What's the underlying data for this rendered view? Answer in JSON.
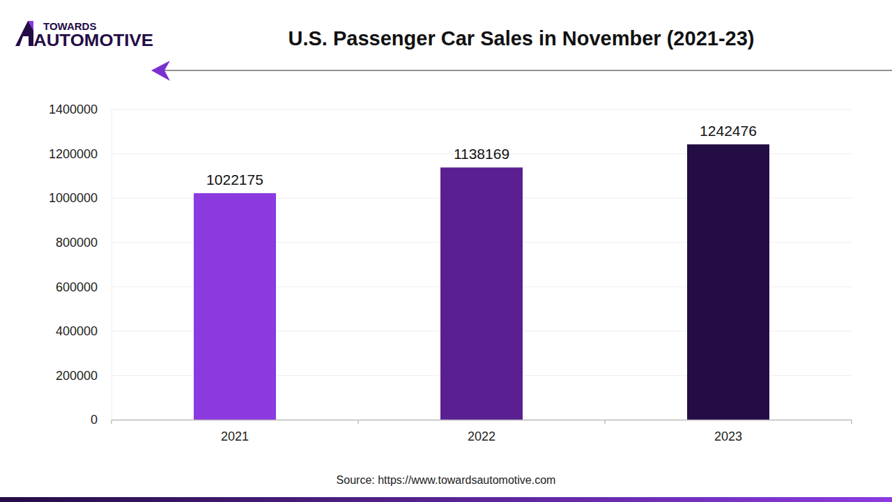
{
  "chart_data": {
    "type": "bar",
    "title": "U.S. Passenger Car Sales in November (2021-23)",
    "annotations": [
      "TOWARDS",
      "AUTOMOTIVE",
      "Source: https://www.towardsautomotive.com"
    ],
    "categories": [
      "2021",
      "2022",
      "2023"
    ],
    "values": [
      1022175,
      1138169,
      1242476
    ],
    "colors": [
      "#8b3ae0",
      "#5a2091",
      "#240c45"
    ],
    "ylim": [
      0,
      1400000
    ],
    "yticks": [
      0,
      200000,
      400000,
      600000,
      800000,
      1000000,
      1200000,
      1400000
    ],
    "grid": true,
    "data_labels": true
  }
}
